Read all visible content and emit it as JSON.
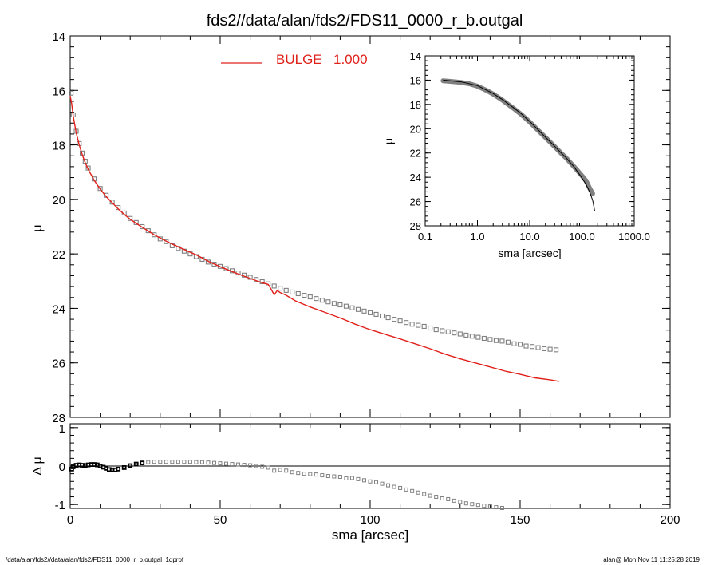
{
  "title": "fds2//data/alan/fds2/FDS11_0000_r_b.outgal",
  "footer_left": "/data/alan/fds2//data/alan/fds2/FDS11_0000_r_b.outgal_1dprof",
  "footer_right": "alan@  Mon Nov 11 11:25:28 2019",
  "colors": {
    "model": "#e0201a",
    "data": "#808080",
    "axis": "#000000"
  },
  "chart_data": [
    {
      "id": "main",
      "type": "scatter",
      "ylabel": "μ",
      "xlim": [
        0,
        200
      ],
      "ylim": [
        28,
        14
      ],
      "y_inverted": true,
      "yticks": [
        14,
        16,
        18,
        20,
        22,
        24,
        26,
        28
      ],
      "legend": {
        "label": "BULGE",
        "value": "1.000",
        "placement": "top-center"
      },
      "series": [
        {
          "name": "data",
          "style": "open-squares",
          "x": [
            0.3,
            1,
            2,
            3,
            4,
            5,
            6,
            8,
            10,
            12,
            14,
            16,
            18,
            20,
            22,
            24,
            26,
            28,
            30,
            32,
            34,
            36,
            38,
            40,
            42,
            44,
            46,
            48,
            50,
            52,
            54,
            56,
            58,
            60,
            62,
            64,
            66,
            68,
            70,
            72,
            74,
            76,
            78,
            80,
            82,
            84,
            86,
            88,
            90,
            92,
            94,
            96,
            98,
            100,
            102,
            104,
            106,
            108,
            110,
            112,
            114,
            116,
            118,
            120,
            122,
            124,
            126,
            128,
            130,
            132,
            134,
            136,
            138,
            140,
            142,
            144,
            146,
            148,
            150,
            152,
            154,
            156,
            158,
            160,
            162
          ],
          "y": [
            16.1,
            16.9,
            17.5,
            17.95,
            18.3,
            18.6,
            18.85,
            19.25,
            19.6,
            19.85,
            20.1,
            20.3,
            20.5,
            20.7,
            20.85,
            21.0,
            21.15,
            21.3,
            21.45,
            21.55,
            21.7,
            21.8,
            21.9,
            22.0,
            22.1,
            22.2,
            22.3,
            22.38,
            22.46,
            22.54,
            22.62,
            22.7,
            22.78,
            22.86,
            22.94,
            23.02,
            23.1,
            23.18,
            23.26,
            23.34,
            23.4,
            23.46,
            23.52,
            23.58,
            23.64,
            23.7,
            23.76,
            23.82,
            23.87,
            23.92,
            23.98,
            24.04,
            24.1,
            24.16,
            24.22,
            24.28,
            24.34,
            24.4,
            24.46,
            24.52,
            24.58,
            24.62,
            24.66,
            24.72,
            24.78,
            24.82,
            24.86,
            24.9,
            24.94,
            24.98,
            25.02,
            25.06,
            25.1,
            25.14,
            25.18,
            25.2,
            25.24,
            25.3,
            25.32,
            25.38,
            25.4,
            25.44,
            25.48,
            25.5,
            25.52
          ]
        },
        {
          "name": "BULGE",
          "style": "line",
          "color": "#e0201a",
          "x": [
            0,
            0.5,
            1,
            2,
            3,
            4,
            5,
            6,
            8,
            10,
            12,
            14,
            16,
            18,
            20,
            22,
            24,
            26,
            28,
            30,
            32,
            34,
            36,
            38,
            40,
            42,
            44,
            46,
            48,
            50,
            52,
            54,
            56,
            58,
            60,
            62,
            64,
            66,
            67,
            68,
            69,
            70,
            72,
            75,
            80,
            85,
            90,
            95,
            100,
            105,
            110,
            115,
            120,
            125,
            130,
            135,
            140,
            145,
            150,
            155,
            160,
            163
          ],
          "y": [
            16.2,
            16.5,
            16.95,
            17.55,
            18.0,
            18.35,
            18.65,
            18.9,
            19.3,
            19.62,
            19.9,
            20.12,
            20.35,
            20.55,
            20.73,
            20.88,
            21.02,
            21.16,
            21.3,
            21.42,
            21.53,
            21.64,
            21.74,
            21.84,
            21.94,
            22.03,
            22.15,
            22.27,
            22.37,
            22.47,
            22.56,
            22.65,
            22.74,
            22.82,
            22.9,
            22.98,
            23.06,
            23.12,
            23.3,
            23.5,
            23.35,
            23.42,
            23.52,
            23.72,
            23.95,
            24.15,
            24.35,
            24.58,
            24.78,
            24.95,
            25.12,
            25.3,
            25.48,
            25.68,
            25.85,
            26.0,
            26.15,
            26.3,
            26.42,
            26.55,
            26.62,
            26.68
          ]
        }
      ]
    },
    {
      "id": "residual",
      "type": "scatter",
      "xlabel": "sma [arcsec]",
      "ylabel": "Δ μ",
      "xlim": [
        0,
        200
      ],
      "ylim": [
        -1.1,
        1.1
      ],
      "xticks": [
        0,
        50,
        100,
        150,
        200
      ],
      "yticks": [
        1,
        0,
        -1
      ],
      "series": [
        {
          "name": "residual",
          "style": "open-squares",
          "x": [
            0.5,
            1,
            2,
            3,
            4,
            5,
            6,
            7,
            8,
            9,
            10,
            11,
            12,
            13,
            14,
            15,
            16,
            18,
            20,
            22,
            24,
            26,
            28,
            30,
            32,
            34,
            36,
            38,
            40,
            42,
            44,
            46,
            48,
            50,
            52,
            54,
            56,
            58,
            60,
            62,
            64,
            66,
            68,
            70,
            72,
            74,
            76,
            78,
            80,
            82,
            84,
            86,
            88,
            90,
            92,
            94,
            96,
            98,
            100,
            102,
            104,
            106,
            108,
            110,
            112,
            114,
            116,
            118,
            120,
            122,
            124,
            126,
            128,
            130,
            132,
            134,
            136,
            138,
            140,
            142,
            144,
            146,
            148,
            150,
            152,
            154
          ],
          "y": [
            -0.08,
            -0.02,
            0.02,
            0.03,
            0.02,
            0.01,
            0.03,
            0.04,
            0.04,
            0.03,
            0.0,
            -0.03,
            -0.06,
            -0.09,
            -0.1,
            -0.1,
            -0.08,
            -0.04,
            0.01,
            0.05,
            0.08,
            0.1,
            0.11,
            0.11,
            0.11,
            0.11,
            0.11,
            0.11,
            0.11,
            0.1,
            0.1,
            0.09,
            0.08,
            0.07,
            0.06,
            0.05,
            0.04,
            0.03,
            0.02,
            0.0,
            -0.02,
            -0.04,
            -0.12,
            -0.1,
            -0.12,
            -0.16,
            -0.18,
            -0.2,
            -0.21,
            -0.22,
            -0.24,
            -0.26,
            -0.27,
            -0.28,
            -0.32,
            -0.31,
            -0.34,
            -0.37,
            -0.4,
            -0.42,
            -0.46,
            -0.5,
            -0.54,
            -0.57,
            -0.61,
            -0.65,
            -0.69,
            -0.73,
            -0.77,
            -0.8,
            -0.84,
            -0.86,
            -0.9,
            -0.93,
            -0.97,
            -0.99,
            -1.01,
            -1.03,
            -1.05,
            -1.07,
            -1.09,
            -1.11,
            -1.13,
            -1.15,
            -1.17,
            -1.19
          ]
        }
      ]
    },
    {
      "id": "inset",
      "type": "scatter",
      "xlabel": "sma [arcsec]",
      "ylabel": "μ",
      "x_scale": "log",
      "xlim": [
        0.1,
        1000
      ],
      "ylim": [
        28,
        14
      ],
      "y_inverted": true,
      "xticks": [
        0.1,
        1,
        10,
        100,
        1000
      ],
      "xtick_labels": [
        "0.1",
        "1.0",
        "10.0",
        "100.0",
        "1000.0"
      ],
      "yticks": [
        14,
        16,
        18,
        20,
        22,
        24,
        26,
        28
      ],
      "series": [
        {
          "name": "data",
          "style": "thick-band",
          "x": [
            0.22,
            0.3,
            0.4,
            0.5,
            0.7,
            1,
            1.5,
            2,
            3,
            4,
            5,
            7,
            10,
            15,
            20,
            30,
            40,
            50,
            60,
            70,
            80,
            100,
            120,
            140,
            160
          ],
          "y": [
            16.05,
            16.1,
            16.15,
            16.2,
            16.3,
            16.5,
            16.85,
            17.15,
            17.65,
            18.05,
            18.35,
            18.85,
            19.45,
            20.2,
            20.72,
            21.48,
            22.02,
            22.42,
            22.8,
            23.12,
            23.4,
            23.88,
            24.3,
            24.9,
            25.35
          ]
        },
        {
          "name": "model",
          "style": "thin-line",
          "x": [
            0.22,
            0.3,
            0.5,
            1,
            2,
            3,
            5,
            7,
            10,
            15,
            20,
            30,
            40,
            50,
            60,
            70,
            80,
            100,
            120,
            140,
            160,
            175
          ],
          "y": [
            16.0,
            16.05,
            16.15,
            16.45,
            17.1,
            17.6,
            18.3,
            18.8,
            19.4,
            20.15,
            20.7,
            21.45,
            22.0,
            22.4,
            22.8,
            23.12,
            23.48,
            24.05,
            24.6,
            25.2,
            25.9,
            26.75
          ]
        }
      ]
    }
  ]
}
